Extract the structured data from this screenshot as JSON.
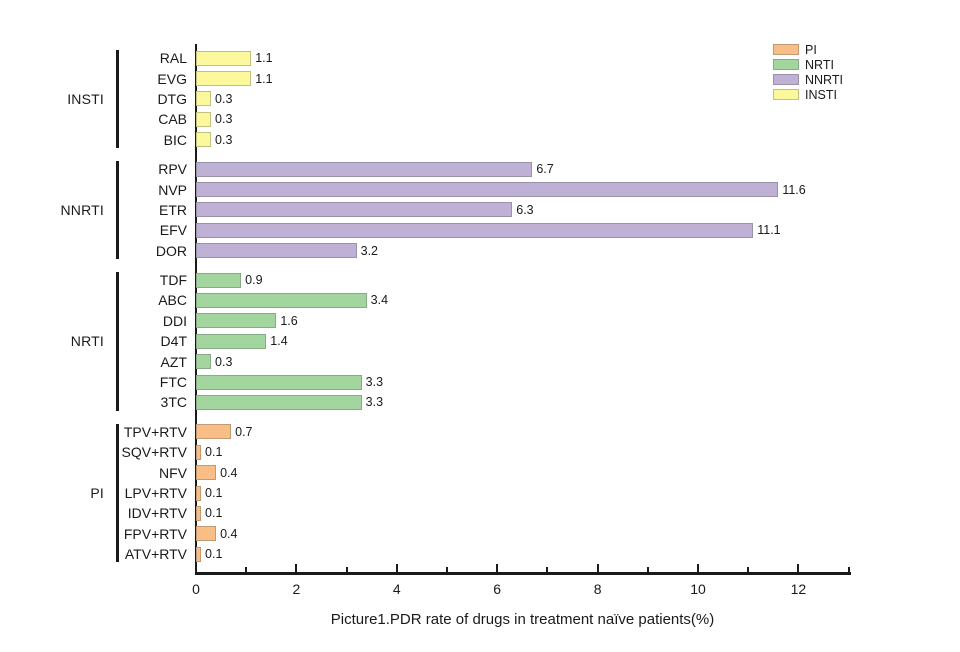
{
  "chart_data": {
    "type": "bar",
    "orientation": "horizontal",
    "title": "Picture1.PDR rate of drugs in treatment naïve patients(%)",
    "xlabel": "",
    "ylabel": "",
    "xlim": [
      0,
      13
    ],
    "x_ticks_major": [
      0,
      2,
      4,
      6,
      8,
      10,
      12
    ],
    "x_ticks_minor": [
      1,
      3,
      5,
      7,
      9,
      11,
      13
    ],
    "grid": false,
    "legend_position": "top-right",
    "legend": [
      {
        "label": "PI",
        "color": "#F9BE85"
      },
      {
        "label": "NRTI",
        "color": "#A2D69E"
      },
      {
        "label": "NNRTI",
        "color": "#BFB1D5"
      },
      {
        "label": "INSTI",
        "color": "#FBF99C"
      }
    ],
    "groups": [
      {
        "name": "INSTI",
        "color": "#FBF99C",
        "bars": [
          {
            "label": "RAL",
            "value": 1.1
          },
          {
            "label": "EVG",
            "value": 1.1
          },
          {
            "label": "DTG",
            "value": 0.3
          },
          {
            "label": "CAB",
            "value": 0.3
          },
          {
            "label": "BIC",
            "value": 0.3
          }
        ]
      },
      {
        "name": "NNRTI",
        "color": "#BFB1D5",
        "bars": [
          {
            "label": "RPV",
            "value": 6.7
          },
          {
            "label": "NVP",
            "value": 11.6
          },
          {
            "label": "ETR",
            "value": 6.3
          },
          {
            "label": "EFV",
            "value": 11.1
          },
          {
            "label": "DOR",
            "value": 3.2
          }
        ]
      },
      {
        "name": "NRTI",
        "color": "#A2D69E",
        "bars": [
          {
            "label": "TDF",
            "value": 0.9
          },
          {
            "label": "ABC",
            "value": 3.4
          },
          {
            "label": "DDI",
            "value": 1.6
          },
          {
            "label": "D4T",
            "value": 1.4
          },
          {
            "label": "AZT",
            "value": 0.3
          },
          {
            "label": "FTC",
            "value": 3.3
          },
          {
            "label": "3TC",
            "value": 3.3
          }
        ]
      },
      {
        "name": "PI",
        "color": "#F9BE85",
        "bars": [
          {
            "label": "TPV+RTV",
            "value": 0.7
          },
          {
            "label": "SQV+RTV",
            "value": 0.1
          },
          {
            "label": "NFV",
            "value": 0.4
          },
          {
            "label": "LPV+RTV",
            "value": 0.1
          },
          {
            "label": "IDV+RTV",
            "value": 0.1
          },
          {
            "label": "FPV+RTV",
            "value": 0.4
          },
          {
            "label": "ATV+RTV",
            "value": 0.1
          }
        ]
      }
    ]
  }
}
